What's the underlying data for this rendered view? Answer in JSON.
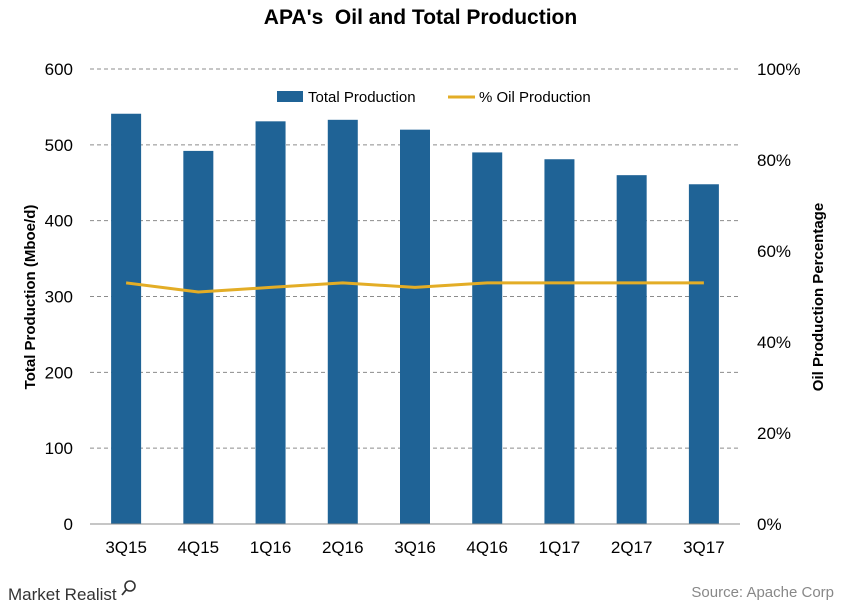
{
  "chart_data": {
    "type": "bar",
    "title": "APA's  Oil and Total Production",
    "categories": [
      "3Q15",
      "4Q15",
      "1Q16",
      "2Q16",
      "3Q16",
      "4Q16",
      "1Q17",
      "2Q17",
      "3Q17"
    ],
    "series": [
      {
        "name": "Total Production",
        "type": "bar",
        "axis": "left",
        "color": "#1f6396",
        "values": [
          541,
          492,
          531,
          533,
          520,
          490,
          481,
          460,
          448
        ]
      },
      {
        "name": "% Oil Production",
        "type": "line",
        "axis": "right",
        "color": "#e3ad26",
        "values": [
          53,
          51,
          52,
          53,
          52,
          53,
          53,
          53,
          53
        ]
      }
    ],
    "ylabel": "Total Production (Mboe/d)",
    "ylim": [
      0,
      600
    ],
    "yticks": [
      "0",
      "100",
      "200",
      "300",
      "400",
      "500",
      "600"
    ],
    "y2label": "Oil Production Percentage",
    "y2lim": [
      0,
      100
    ],
    "y2ticks": [
      "0%",
      "20%",
      "40%",
      "60%",
      "80%",
      "100%"
    ],
    "grid": true,
    "legend": "top-center"
  },
  "footer": {
    "brand": "Market Realist",
    "source": "Source:  Apache Corp"
  }
}
